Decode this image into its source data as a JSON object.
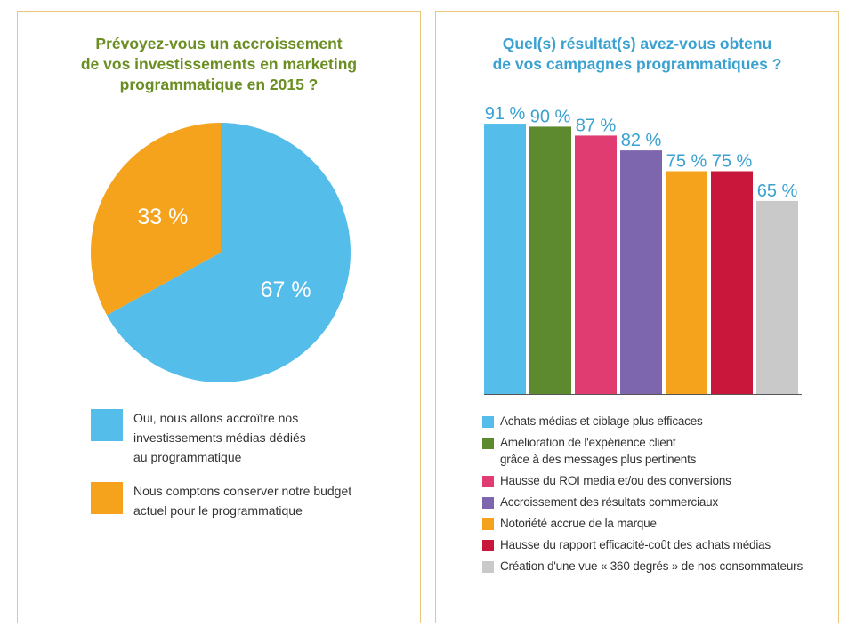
{
  "chart_data": [
    {
      "type": "pie",
      "title_lines": [
        "Prévoyez-vous un accroissement",
        "de vos investissements en marketing",
        "programmatique en 2015 ?"
      ],
      "slices": [
        {
          "label_lines": [
            "Oui, nous allons accroître nos",
            "investissements médias dédiés",
            "au programmatique"
          ],
          "value": 67,
          "value_label": "67 %",
          "color": "#55bde9"
        },
        {
          "label_lines": [
            "Nous comptons conserver notre budget",
            "actuel pour le programmatique"
          ],
          "value": 33,
          "value_label": "33 %",
          "color": "#f5a21c"
        }
      ]
    },
    {
      "type": "bar",
      "title_lines": [
        "Quel(s) résultat(s) avez-vous obtenu",
        "de vos campagnes programmatiques ?"
      ],
      "ylim": [
        0,
        100
      ],
      "series": [
        {
          "label_lines": [
            "Achats médias et ciblage plus efficaces"
          ],
          "value": 91,
          "value_label": "91 %",
          "color": "#55bde9"
        },
        {
          "label_lines": [
            "Amélioration de l'expérience client",
            "grâce à des messages plus pertinents"
          ],
          "value": 90,
          "value_label": "90 %",
          "color": "#5d8a2f"
        },
        {
          "label_lines": [
            "Hausse du ROI media et/ou des conversions"
          ],
          "value": 87,
          "value_label": "87 %",
          "color": "#e13c72"
        },
        {
          "label_lines": [
            "Accroissement des résultats commerciaux"
          ],
          "value": 82,
          "value_label": "82 %",
          "color": "#7d66ad"
        },
        {
          "label_lines": [
            "Notoriété accrue de la marque"
          ],
          "value": 75,
          "value_label": "75 %",
          "color": "#f5a21c"
        },
        {
          "label_lines": [
            "Hausse du rapport efficacité-coût des achats médias"
          ],
          "value": 75,
          "value_label": "75 %",
          "color": "#c8173a"
        },
        {
          "label_lines": [
            "Création d'une vue « 360 degrés » de nos consommateurs"
          ],
          "value": 65,
          "value_label": "65 %",
          "color": "#c9c9c9"
        }
      ]
    }
  ]
}
